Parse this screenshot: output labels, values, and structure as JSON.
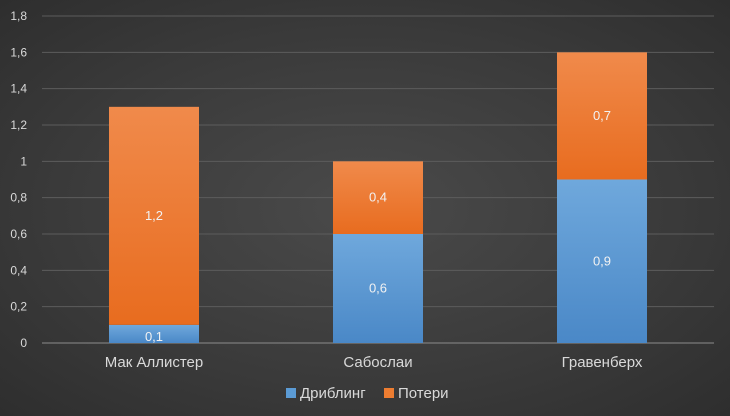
{
  "chart_data": {
    "type": "bar",
    "stacked": true,
    "categories": [
      "Мак Аллистер",
      "Сабослаи",
      "Гравенберх"
    ],
    "series": [
      {
        "name": "Дриблинг",
        "values": [
          0.1,
          0.6,
          0.9
        ],
        "labels": [
          "0,1",
          "0,6",
          "0,9"
        ],
        "color": "#5b9bd5"
      },
      {
        "name": "Потери",
        "values": [
          1.2,
          0.4,
          0.7
        ],
        "labels": [
          "1,2",
          "0,4",
          "0,7"
        ],
        "color": "#ed7d31"
      }
    ],
    "yticks": [
      "0",
      "0,2",
      "0,4",
      "0,6",
      "0,8",
      "1",
      "1,2",
      "1,4",
      "1,6",
      "1,8"
    ],
    "ylim": [
      0,
      1.8
    ],
    "grid": true,
    "legend_position": "bottom"
  }
}
